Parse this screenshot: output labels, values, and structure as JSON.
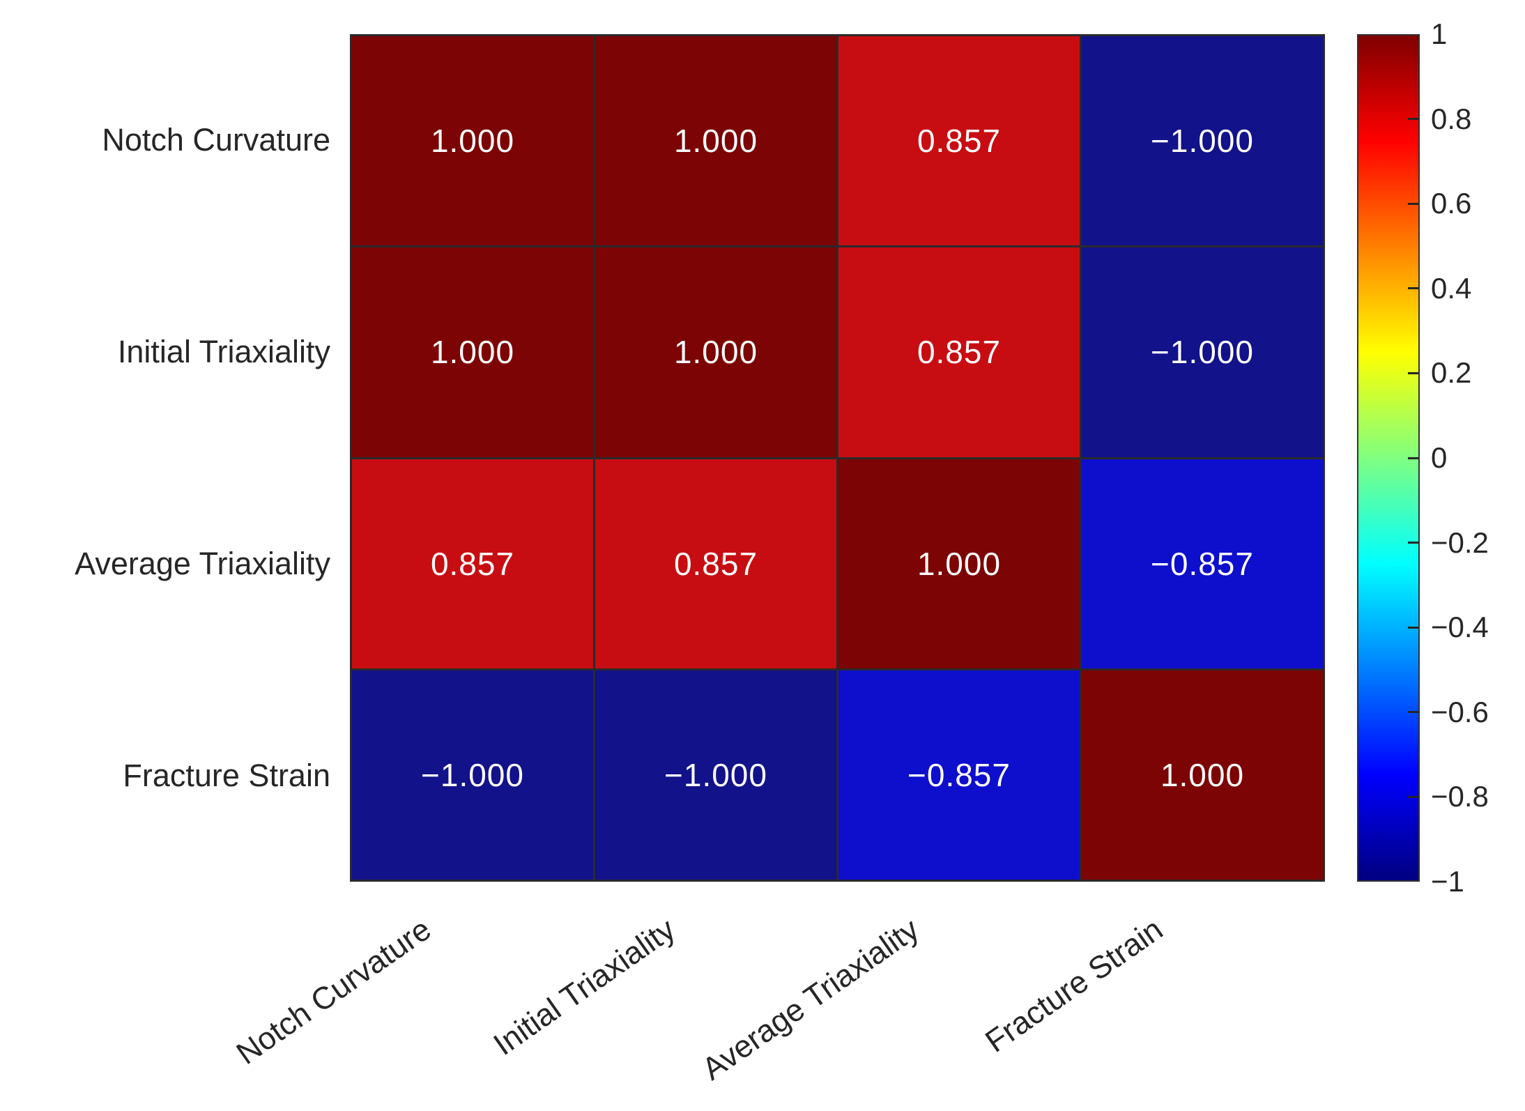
{
  "chart_data": {
    "type": "heatmap",
    "title": "",
    "xlabel": "",
    "ylabel": "",
    "categories": [
      "Notch Curvature",
      "Initial Triaxiality",
      "Average Triaxiality",
      "Fracture Strain"
    ],
    "row_labels": [
      "Notch Curvature",
      "Initial Triaxiality",
      "Average Triaxiality",
      "Fracture Strain"
    ],
    "col_labels": [
      "Notch Curvature",
      "Initial Triaxiality",
      "Average Triaxiality",
      "Fracture Strain"
    ],
    "matrix": [
      [
        1.0,
        1.0,
        0.857,
        -1.0
      ],
      [
        1.0,
        1.0,
        0.857,
        -1.0
      ],
      [
        0.857,
        0.857,
        1.0,
        -0.857
      ],
      [
        -1.0,
        -1.0,
        -0.857,
        1.0
      ]
    ],
    "matrix_labels": [
      [
        "1.000",
        "1.000",
        "0.857",
        "−1.000"
      ],
      [
        "1.000",
        "1.000",
        "0.857",
        "−1.000"
      ],
      [
        "0.857",
        "0.857",
        "1.000",
        "−0.857"
      ],
      [
        "−1.000",
        "−1.000",
        "−0.857",
        "1.000"
      ]
    ],
    "cell_colors": {
      "1.000": "#7c0404",
      "0.857": "#c80d12",
      "−0.857": "#0e0ecd",
      "−1.000": "#12128a"
    },
    "value_text_color": "#ffffff",
    "grid_color": "#2a2a2a",
    "axis_label_color": "#262626",
    "colorbar": {
      "position": "right",
      "range": [
        -1,
        1
      ],
      "colormap": "jet",
      "tick_values": [
        1,
        0.8,
        0.6,
        0.4,
        0.2,
        0,
        -0.2,
        -0.4,
        -0.6,
        -0.8,
        -1
      ],
      "tick_labels": [
        "1",
        "0.8",
        "0.6",
        "0.4",
        "0.2",
        "0",
        "−0.2",
        "−0.4",
        "−0.6",
        "−0.8",
        "−1"
      ],
      "gradient_stops": [
        {
          "pos": 0.0,
          "color": "#800000"
        },
        {
          "pos": 0.125,
          "color": "#ff0000"
        },
        {
          "pos": 0.375,
          "color": "#ffff00"
        },
        {
          "pos": 0.5,
          "color": "#80ff80"
        },
        {
          "pos": 0.625,
          "color": "#00ffff"
        },
        {
          "pos": 0.875,
          "color": "#0000ff"
        },
        {
          "pos": 1.0,
          "color": "#000080"
        }
      ]
    },
    "legend": null,
    "grid_on": true
  }
}
